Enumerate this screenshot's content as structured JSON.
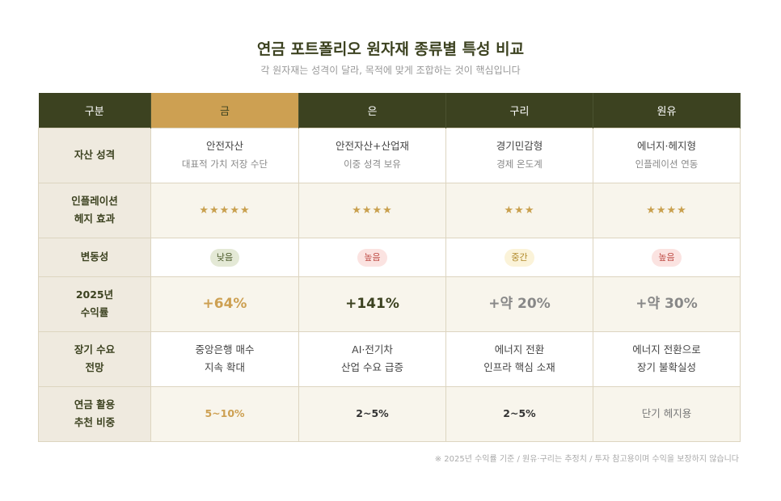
{
  "title": "연금 포트폴리오 원자재 종류별 특성 비교",
  "subtitle": "각 원자재는 성격이 달라, 목적에 맞게 조합하는 것이 핵심입니다",
  "headers": [
    "구분",
    "금",
    "은",
    "구리",
    "원유"
  ],
  "rows": {
    "nature": {
      "label": "자산 성격",
      "cells": [
        {
          "main": "안전자산",
          "sub": "대표적 가치 저장 수단"
        },
        {
          "main": "안전자산+산업재",
          "sub": "이중 성격 보유"
        },
        {
          "main": "경기민감형",
          "sub": "경제 온도계"
        },
        {
          "main": "에너지·헤지형",
          "sub": "인플레이션 연동"
        }
      ]
    },
    "hedge": {
      "label1": "인플레이션",
      "label2": "헤지 효과",
      "cells": [
        "★★★★★",
        "★★★★",
        "★★★",
        "★★★★"
      ],
      "ratings": [
        5,
        4,
        3,
        4
      ]
    },
    "volatility": {
      "label": "변동성",
      "cells": [
        {
          "text": "낮음",
          "bg": "#e4e9d6",
          "color": "#4a5a2a"
        },
        {
          "text": "높음",
          "bg": "#fbe3e1",
          "color": "#c0504a"
        },
        {
          "text": "중간",
          "bg": "#fbf3d9",
          "color": "#b08a2a"
        },
        {
          "text": "높음",
          "bg": "#fbe3e1",
          "color": "#c0504a"
        }
      ]
    },
    "return": {
      "label1": "2025년",
      "label2": "수익률",
      "cells": [
        {
          "text": "+64%",
          "color": "#cda052"
        },
        {
          "text": "+141%",
          "color": "#3c4220"
        },
        {
          "text": "+약 20%",
          "color": "#888888"
        },
        {
          "text": "+약 30%",
          "color": "#888888"
        }
      ]
    },
    "outlook": {
      "label1": "장기 수요",
      "label2": "전망",
      "cells": [
        [
          "중앙은행 매수",
          "지속 확대"
        ],
        [
          "AI·전기차",
          "산업 수요 급증"
        ],
        [
          "에너지 전환",
          "인프라 핵심 소재"
        ],
        [
          "에너지 전환으로",
          "장기 불확실성"
        ]
      ]
    },
    "weight": {
      "label1": "연금 활용",
      "label2": "추천 비중",
      "cells": [
        {
          "text": "5~10%",
          "color": "#cda052",
          "bold": true
        },
        {
          "text": "2~5%",
          "color": "#333333",
          "bold": true
        },
        {
          "text": "2~5%",
          "color": "#333333",
          "bold": true
        },
        {
          "text": "단기 헤지용",
          "color": "#777777",
          "bold": false
        }
      ]
    }
  },
  "note": "※ 2025년 수익률 기준 / 원유·구리는 추정치 / 투자 참고용이며 수익을 보장하지 않습니다"
}
